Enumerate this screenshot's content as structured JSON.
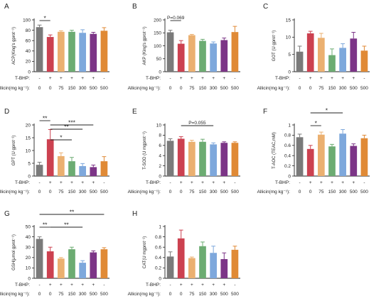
{
  "colors": [
    "#7a7a7a",
    "#cc4150",
    "#ebb070",
    "#6cac72",
    "#7ea8dc",
    "#7c3587",
    "#e08a36"
  ],
  "row_labels": {
    "tbhp": "T-BHP:",
    "allicin": "Allicin(mg kg⁻¹):"
  },
  "categories": [
    {
      "tbhp": "-",
      "allicin": "0"
    },
    {
      "tbhp": "+",
      "allicin": "0"
    },
    {
      "tbhp": "+",
      "allicin": "75"
    },
    {
      "tbhp": "+",
      "allicin": "150"
    },
    {
      "tbhp": "+",
      "allicin": "300"
    },
    {
      "tbhp": "+",
      "allicin": "500"
    },
    {
      "tbhp": "-",
      "allicin": "500"
    }
  ],
  "chart_data": [
    {
      "panel": "A",
      "type": "bar",
      "ylabel": "ACP(King's gprot⁻¹)",
      "ylim": [
        0,
        100
      ],
      "yticks": [
        0,
        20,
        40,
        60,
        80,
        100
      ],
      "values": [
        86,
        67,
        77,
        77,
        75,
        73,
        79
      ],
      "errors": [
        4,
        4,
        2,
        3,
        6,
        3,
        6
      ],
      "brackets": [
        {
          "from": 0,
          "to": 1,
          "label": "*",
          "level": 0
        }
      ]
    },
    {
      "panel": "B",
      "type": "bar",
      "ylabel": "AKP (King's gprot⁻¹)",
      "ylim": [
        0,
        200
      ],
      "yticks": [
        0,
        50,
        100,
        150,
        200
      ],
      "values": [
        152,
        108,
        141,
        119,
        109,
        122,
        153
      ],
      "errors": [
        8,
        12,
        3,
        6,
        6,
        8,
        22
      ],
      "brackets": [
        {
          "from": 0,
          "to": 1,
          "label": "P=0.069",
          "level": 0
        }
      ]
    },
    {
      "panel": "C",
      "type": "bar",
      "ylabel": "GOT (U gprot⁻¹)",
      "ylim": [
        0,
        15
      ],
      "yticks": [
        0,
        5,
        10,
        15
      ],
      "values": [
        5.8,
        11.1,
        9.8,
        4.8,
        6.9,
        9.6,
        6.1
      ],
      "errors": [
        1.6,
        0.6,
        1.3,
        1.8,
        1.2,
        1.8,
        1.3
      ],
      "brackets": []
    },
    {
      "panel": "D",
      "type": "bar",
      "ylabel": "GPT (U gprot⁻¹)",
      "ylim": [
        0,
        20
      ],
      "yticks": [
        0,
        5,
        10,
        15,
        20
      ],
      "values": [
        4.4,
        14.4,
        7.8,
        5.8,
        3.9,
        3.5,
        5.8
      ],
      "errors": [
        1.0,
        3.8,
        1.3,
        1.5,
        1.0,
        0.8,
        1.8
      ],
      "brackets": [
        {
          "from": 0,
          "to": 1,
          "label": "**",
          "level": 3
        },
        {
          "from": 1,
          "to": 5,
          "label": "***",
          "level": 2
        },
        {
          "from": 1,
          "to": 4,
          "label": "**",
          "level": 1
        },
        {
          "from": 1,
          "to": 3,
          "label": "*",
          "level": 0
        }
      ]
    },
    {
      "panel": "E",
      "type": "bar",
      "ylabel": "T-SOD (U mgprot⁻¹)",
      "ylim": [
        0,
        10
      ],
      "yticks": [
        0,
        2,
        4,
        6,
        8,
        10
      ],
      "values": [
        6.9,
        7.3,
        6.7,
        6.7,
        6.2,
        6.5,
        6.5
      ],
      "errors": [
        0.4,
        0.4,
        0.3,
        0.5,
        0.3,
        0.2,
        0.2
      ],
      "brackets": [
        {
          "from": 1,
          "to": 4,
          "label": "P=0.055",
          "level": 0
        }
      ]
    },
    {
      "panel": "F",
      "type": "bar",
      "ylabel": "T-AOC (TEAC,mM)",
      "ylim": [
        0,
        1.0
      ],
      "yticks": [
        0,
        0.2,
        0.4,
        0.6,
        0.8,
        1.0
      ],
      "values": [
        0.76,
        0.53,
        0.81,
        0.58,
        0.83,
        0.59,
        0.74
      ],
      "errors": [
        0.06,
        0.07,
        0.05,
        0.04,
        0.08,
        0.04,
        0.06
      ],
      "brackets": [
        {
          "from": 1,
          "to": 4,
          "label": "*",
          "level": 1
        },
        {
          "from": 1,
          "to": 2,
          "label": "*",
          "level": 0
        }
      ]
    },
    {
      "panel": "G",
      "type": "bar",
      "ylabel": "GSH(μmol gprot⁻¹)",
      "ylim": [
        0,
        50
      ],
      "yticks": [
        0,
        10,
        20,
        30,
        40,
        50
      ],
      "values": [
        38,
        26,
        19,
        28,
        15,
        25,
        28
      ],
      "errors": [
        2,
        4,
        1,
        2,
        2,
        1.5,
        1.5
      ],
      "brackets": [
        {
          "from": 0,
          "to": 6,
          "label": "**",
          "level": 1
        },
        {
          "from": 0,
          "to": 1,
          "label": "**",
          "level": 0
        },
        {
          "from": 1,
          "to": 4,
          "label": "**",
          "level": 0
        }
      ]
    },
    {
      "panel": "H",
      "type": "bar",
      "ylabel": "CAT(U mgprot⁻¹)",
      "ylim": [
        0,
        1.0
      ],
      "yticks": [
        0,
        0.2,
        0.4,
        0.6,
        0.8,
        1.0
      ],
      "values": [
        0.42,
        0.77,
        0.39,
        0.62,
        0.49,
        0.37,
        0.55
      ],
      "errors": [
        0.09,
        0.16,
        0.02,
        0.08,
        0.13,
        0.12,
        0.07
      ],
      "brackets": []
    }
  ]
}
